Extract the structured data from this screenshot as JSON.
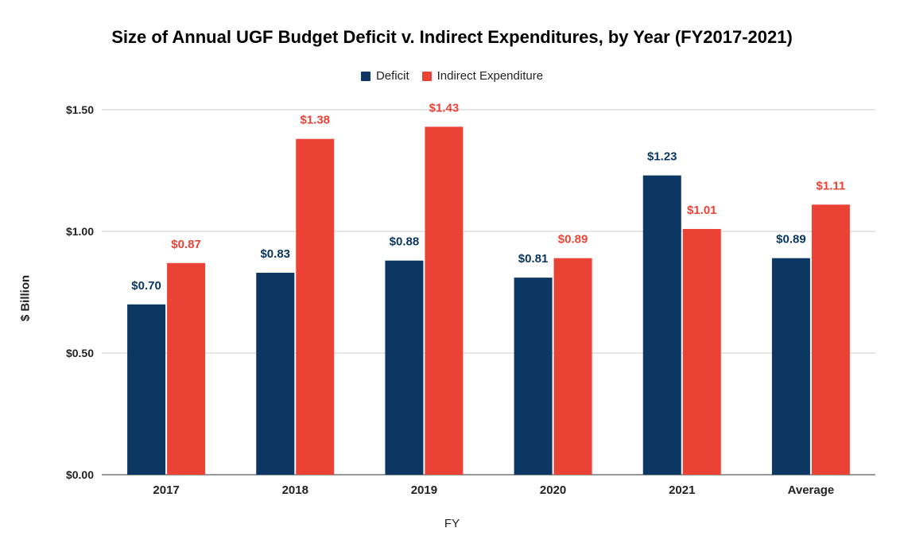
{
  "chart_data": {
    "type": "bar",
    "title": "Size of Annual UGF Budget Deficit v. Indirect Expenditures, by Year (FY2017-2021)",
    "xlabel": "FY",
    "ylabel": "$ Billion",
    "categories": [
      "2017",
      "2018",
      "2019",
      "2020",
      "2021",
      "Average"
    ],
    "series": [
      {
        "name": "Deficit",
        "color": "#0b3762",
        "values": [
          0.7,
          0.83,
          0.88,
          0.81,
          1.23,
          0.89
        ],
        "labels": [
          "$0.70",
          "$0.83",
          "$0.88",
          "$0.81",
          "$1.23",
          "$0.89"
        ]
      },
      {
        "name": "Indirect Expenditure",
        "color": "#ea4335",
        "values": [
          0.87,
          1.38,
          1.43,
          0.89,
          1.01,
          1.11
        ],
        "labels": [
          "$0.87",
          "$1.38",
          "$1.43",
          "$0.89",
          "$1.01",
          "$1.11"
        ]
      }
    ],
    "ylim": [
      0,
      1.5
    ],
    "yticks": [
      0,
      0.5,
      1.0,
      1.5
    ],
    "ytick_labels": [
      "$0.00",
      "$0.50",
      "$1.00",
      "$1.50"
    ],
    "grid": true,
    "legend_position": "top"
  }
}
